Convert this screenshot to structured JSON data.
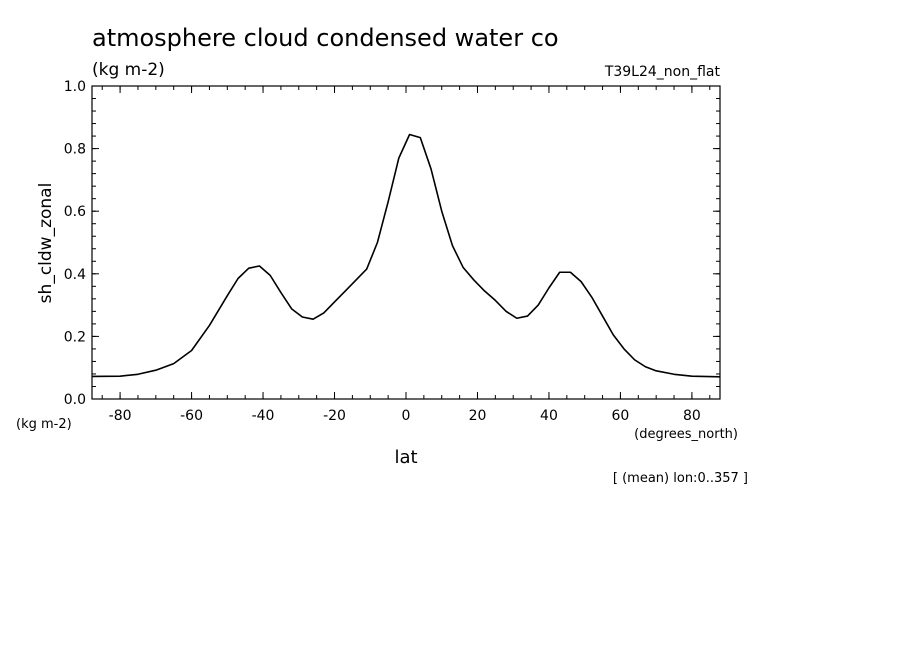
{
  "chart_data": {
    "type": "line",
    "title": "atmosphere cloud condensed water co",
    "subtitle": "(kg m-2)",
    "run_label": "T39L24_non_flat",
    "ylabel": "sh_cldw_zonal",
    "yunits": "(kg m-2)",
    "xlabel": "lat",
    "xunits": "(degrees_north)",
    "footnote": "[ (mean) lon:0..357 ]",
    "xlim": [
      -87.86,
      87.86
    ],
    "ylim": [
      0.0,
      1.0
    ],
    "xticks": [
      -80,
      -60,
      -40,
      -20,
      0,
      20,
      40,
      60,
      80
    ],
    "xtick_labels": [
      "-80",
      "-60",
      "-40",
      "-20",
      "0",
      "20",
      "40",
      "60",
      "80"
    ],
    "yticks": [
      0.0,
      0.2,
      0.4,
      0.6,
      0.8,
      1.0
    ],
    "ytick_labels": [
      "0.0",
      "0.2",
      "0.4",
      "0.6",
      "0.8",
      "1.0"
    ],
    "grid": false,
    "series": [
      {
        "name": "sh_cldw_zonal",
        "x": [
          -87.86,
          -80,
          -75,
          -70,
          -65,
          -60,
          -55,
          -50,
          -47,
          -44,
          -41,
          -38,
          -35,
          -32,
          -29,
          -26,
          -23,
          -20,
          -17,
          -14,
          -11,
          -8,
          -5,
          -2,
          1,
          4,
          7,
          10,
          13,
          16,
          19,
          22,
          25,
          28,
          31,
          34,
          37,
          40,
          43,
          46,
          49,
          52,
          55,
          58,
          61,
          64,
          67,
          70,
          75,
          80,
          87.86
        ],
        "y": [
          0.072,
          0.073,
          0.079,
          0.092,
          0.113,
          0.155,
          0.235,
          0.33,
          0.385,
          0.418,
          0.425,
          0.395,
          0.34,
          0.288,
          0.262,
          0.255,
          0.275,
          0.31,
          0.345,
          0.38,
          0.415,
          0.5,
          0.63,
          0.77,
          0.845,
          0.835,
          0.735,
          0.6,
          0.49,
          0.42,
          0.38,
          0.345,
          0.315,
          0.28,
          0.258,
          0.265,
          0.3,
          0.355,
          0.405,
          0.405,
          0.375,
          0.325,
          0.265,
          0.205,
          0.16,
          0.125,
          0.103,
          0.09,
          0.079,
          0.073,
          0.071
        ]
      }
    ]
  }
}
